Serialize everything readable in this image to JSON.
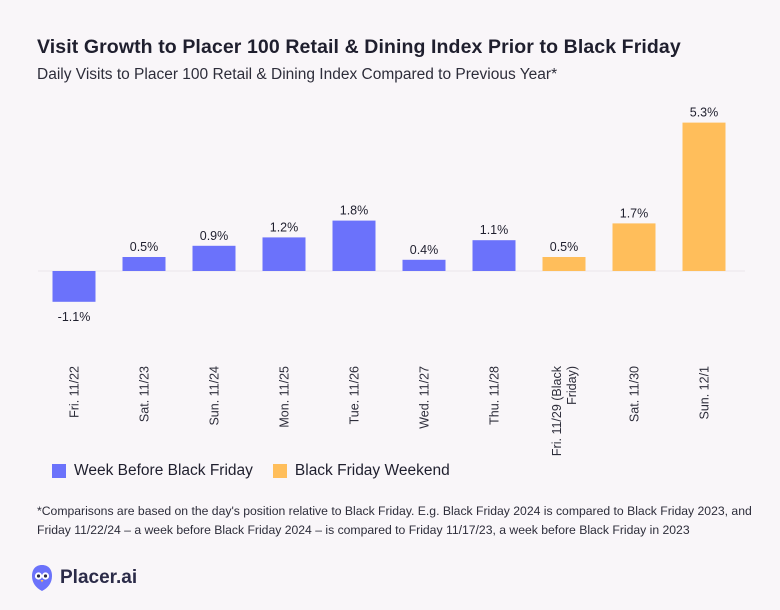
{
  "title": "Visit Growth to Placer 100 Retail & Dining Index Prior to Black Friday",
  "subtitle": "Daily Visits to Placer 100 Retail & Dining Index Compared to Previous Year*",
  "legend": [
    {
      "label": "Week Before Black Friday",
      "color": "#6b72fb"
    },
    {
      "label": "Black Friday Weekend",
      "color": "#ffbe5b"
    }
  ],
  "footnote": "*Comparisons are based on the day's position relative to Black Friday. E.g. Black Friday 2024 is compared to Black Friday 2023, and Friday 11/22/24 – a week before Black Friday 2024 – is compared to Friday 11/17/23, a week before Black Friday in 2023",
  "brand": {
    "name": "Placer.ai",
    "icon": "placer-owl-icon",
    "color": "#6b72fb"
  },
  "chart_data": {
    "type": "bar",
    "title": "Visit Growth to Placer 100 Retail & Dining Index Prior to Black Friday",
    "ylabel": "",
    "xlabel": "",
    "ylim": [
      -2,
      6
    ],
    "grid": false,
    "categories": [
      "Fri. 11/22",
      "Sat. 11/23",
      "Sun. 11/24",
      "Mon. 11/25",
      "Tue. 11/26",
      "Wed. 11/27",
      "Thu. 11/28",
      "Fri. 11/29 (Black Friday)",
      "Sat. 11/30",
      "Sun. 12/1"
    ],
    "category_lines": [
      [
        "Fri. 11/22"
      ],
      [
        "Sat. 11/23"
      ],
      [
        "Sun. 11/24"
      ],
      [
        "Mon. 11/25"
      ],
      [
        "Tue. 11/26"
      ],
      [
        "Wed. 11/27"
      ],
      [
        "Thu. 11/28"
      ],
      [
        "Fri. 11/29 (Black",
        "Friday)"
      ],
      [
        "Sat. 11/30"
      ],
      [
        "Sun. 12/1"
      ]
    ],
    "values": [
      -1.1,
      0.5,
      0.9,
      1.2,
      1.8,
      0.4,
      1.1,
      0.5,
      1.7,
      5.3
    ],
    "labels": [
      "-1.1%",
      "0.5%",
      "0.9%",
      "1.2%",
      "1.8%",
      "0.4%",
      "1.1%",
      "0.5%",
      "1.7%",
      "5.3%"
    ],
    "groups": [
      0,
      0,
      0,
      0,
      0,
      0,
      0,
      1,
      1,
      1
    ],
    "series": [
      {
        "name": "Week Before Black Friday",
        "color": "#6b72fb"
      },
      {
        "name": "Black Friday Weekend",
        "color": "#ffbe5b"
      }
    ]
  }
}
